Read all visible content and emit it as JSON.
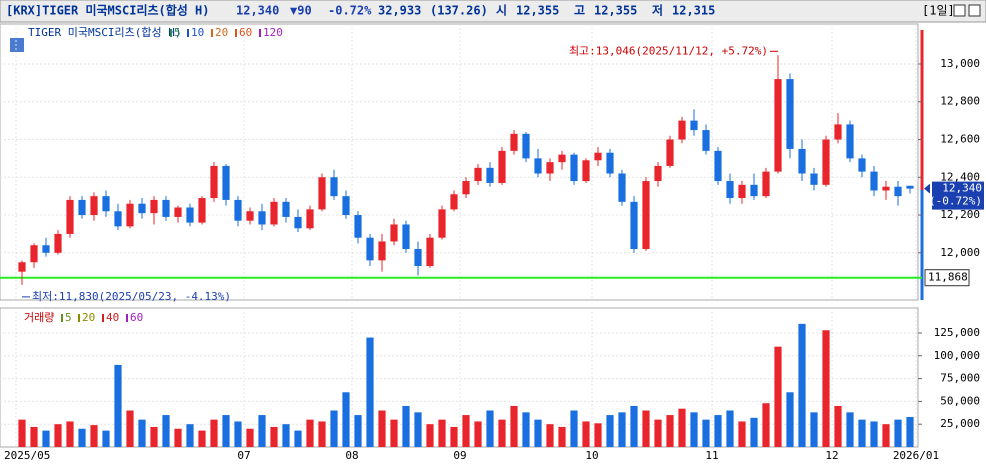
{
  "chart_data": {
    "type": "candlestick",
    "header": {
      "name": "[KRX]TIGER 미국MSCI리츠(합성 H)",
      "price": "12,340",
      "change": "▼90",
      "change_pct": "-0.72%",
      "volume": "32,933",
      "volume_pct": "(137.26)",
      "open_label": "시",
      "open": "12,355",
      "high_label": "고",
      "high": "12,355",
      "low_label": "저",
      "low": "12,315",
      "period": "[1일]"
    },
    "legend": {
      "name": "TIGER 미국MSCI리츠(합성 H)",
      "ma": [
        {
          "name": "5",
          "color": "#2e8b57"
        },
        {
          "name": "10",
          "color": "#1e50c8"
        },
        {
          "name": "20",
          "color": "#d2691e"
        },
        {
          "name": "60",
          "color": "#e0501e"
        },
        {
          "name": "120",
          "color": "#a020c0"
        }
      ]
    },
    "volume_legend": {
      "name": "거래량",
      "ma": [
        {
          "name": "5",
          "color": "#6b8e23"
        },
        {
          "name": "20",
          "color": "#8b8b00"
        },
        {
          "name": "40",
          "color": "#d02020"
        },
        {
          "name": "60",
          "color": "#a020c0"
        }
      ]
    },
    "annotations": {
      "high": "최고:13,046(2025/11/12, +5.72%)",
      "low": "최저:11,830(2025/05/23, -4.13%)",
      "last_price": "12,340",
      "last_pct": "(-0.72%)",
      "ref_label": "11,868"
    },
    "ref_line": 11868,
    "up_color": "#e8242c",
    "down_color": "#1a6fe0",
    "ohlc": [
      [
        11900,
        11960,
        11830,
        11950
      ],
      [
        11950,
        12050,
        11920,
        12040
      ],
      [
        12040,
        12080,
        11980,
        12000
      ],
      [
        12000,
        12120,
        11990,
        12100
      ],
      [
        12100,
        12300,
        12080,
        12280
      ],
      [
        12280,
        12300,
        12180,
        12200
      ],
      [
        12200,
        12320,
        12170,
        12300
      ],
      [
        12300,
        12330,
        12190,
        12220
      ],
      [
        12220,
        12260,
        12120,
        12140
      ],
      [
        12140,
        12280,
        12130,
        12260
      ],
      [
        12260,
        12290,
        12180,
        12210
      ],
      [
        12210,
        12300,
        12150,
        12280
      ],
      [
        12280,
        12300,
        12170,
        12190
      ],
      [
        12190,
        12250,
        12160,
        12240
      ],
      [
        12240,
        12260,
        12140,
        12160
      ],
      [
        12160,
        12300,
        12150,
        12290
      ],
      [
        12290,
        12480,
        12270,
        12460
      ],
      [
        12460,
        12470,
        12250,
        12280
      ],
      [
        12280,
        12300,
        12140,
        12170
      ],
      [
        12170,
        12240,
        12150,
        12220
      ],
      [
        12220,
        12260,
        12120,
        12150
      ],
      [
        12150,
        12290,
        12140,
        12270
      ],
      [
        12270,
        12290,
        12160,
        12190
      ],
      [
        12190,
        12230,
        12110,
        12130
      ],
      [
        12130,
        12250,
        12120,
        12230
      ],
      [
        12230,
        12420,
        12220,
        12400
      ],
      [
        12400,
        12440,
        12280,
        12300
      ],
      [
        12300,
        12330,
        12180,
        12200
      ],
      [
        12200,
        12220,
        12050,
        12080
      ],
      [
        12080,
        12100,
        11930,
        11960
      ],
      [
        11960,
        12100,
        11900,
        12060
      ],
      [
        12060,
        12180,
        12040,
        12150
      ],
      [
        12150,
        12170,
        12000,
        12020
      ],
      [
        12020,
        12060,
        11880,
        11930
      ],
      [
        11930,
        12100,
        11920,
        12080
      ],
      [
        12080,
        12250,
        12070,
        12230
      ],
      [
        12230,
        12330,
        12220,
        12310
      ],
      [
        12310,
        12400,
        12290,
        12380
      ],
      [
        12380,
        12470,
        12360,
        12450
      ],
      [
        12450,
        12480,
        12350,
        12370
      ],
      [
        12370,
        12560,
        12360,
        12540
      ],
      [
        12540,
        12650,
        12520,
        12630
      ],
      [
        12630,
        12640,
        12480,
        12500
      ],
      [
        12500,
        12550,
        12400,
        12420
      ],
      [
        12420,
        12500,
        12380,
        12480
      ],
      [
        12480,
        12540,
        12440,
        12520
      ],
      [
        12520,
        12530,
        12360,
        12380
      ],
      [
        12380,
        12500,
        12370,
        12490
      ],
      [
        12490,
        12560,
        12460,
        12530
      ],
      [
        12530,
        12550,
        12400,
        12420
      ],
      [
        12420,
        12440,
        12250,
        12270
      ],
      [
        12270,
        12300,
        12000,
        12020
      ],
      [
        12020,
        12400,
        12010,
        12380
      ],
      [
        12380,
        12480,
        12350,
        12460
      ],
      [
        12460,
        12620,
        12450,
        12600
      ],
      [
        12600,
        12720,
        12580,
        12700
      ],
      [
        12700,
        12760,
        12620,
        12650
      ],
      [
        12650,
        12680,
        12520,
        12540
      ],
      [
        12540,
        12560,
        12360,
        12380
      ],
      [
        12380,
        12420,
        12260,
        12290
      ],
      [
        12290,
        12380,
        12260,
        12360
      ],
      [
        12360,
        12420,
        12280,
        12300
      ],
      [
        12300,
        12450,
        12290,
        12430
      ],
      [
        12430,
        13046,
        12420,
        12920
      ],
      [
        12920,
        12950,
        12500,
        12550
      ],
      [
        12550,
        12600,
        12380,
        12420
      ],
      [
        12420,
        12450,
        12330,
        12360
      ],
      [
        12360,
        12620,
        12350,
        12600
      ],
      [
        12600,
        12740,
        12580,
        12680
      ],
      [
        12680,
        12700,
        12480,
        12500
      ],
      [
        12500,
        12520,
        12400,
        12430
      ],
      [
        12430,
        12460,
        12300,
        12330
      ],
      [
        12330,
        12380,
        12280,
        12350
      ],
      [
        12350,
        12380,
        12250,
        12300
      ],
      [
        12355,
        12355,
        12315,
        12340
      ]
    ],
    "volume": [
      30000,
      22000,
      18000,
      25000,
      28000,
      20000,
      24000,
      18000,
      90000,
      40000,
      30000,
      22000,
      35000,
      20000,
      25000,
      18000,
      30000,
      35000,
      28000,
      20000,
      35000,
      22000,
      25000,
      18000,
      30000,
      28000,
      40000,
      60000,
      35000,
      120000,
      40000,
      30000,
      45000,
      38000,
      25000,
      30000,
      22000,
      35000,
      28000,
      40000,
      30000,
      45000,
      38000,
      30000,
      25000,
      22000,
      40000,
      28000,
      26000,
      35000,
      38000,
      45000,
      40000,
      30000,
      35000,
      42000,
      38000,
      30000,
      35000,
      40000,
      28000,
      32000,
      48000,
      110000,
      60000,
      135000,
      38000,
      128000,
      45000,
      38000,
      30000,
      28000,
      25000,
      30000,
      32933
    ],
    "xticks": [
      {
        "value": 0,
        "label": "2025/05"
      },
      {
        "value": 19,
        "label": "07"
      },
      {
        "value": 28,
        "label": "08"
      },
      {
        "value": 37,
        "label": "09"
      },
      {
        "value": 48,
        "label": "10"
      },
      {
        "value": 58,
        "label": "11"
      },
      {
        "value": 68,
        "label": "12"
      },
      {
        "value": 75,
        "label": "2026/01"
      }
    ],
    "xlim": [
      0,
      75
    ],
    "ylim": [
      11750,
      13180
    ],
    "yticks": [
      {
        "value": 12000,
        "label": "12,000"
      },
      {
        "value": 12200,
        "label": "12,200"
      },
      {
        "value": 12400,
        "label": "12,400"
      },
      {
        "value": 12600,
        "label": "12,600"
      },
      {
        "value": 12800,
        "label": "12,800"
      },
      {
        "value": 13000,
        "label": "13,000"
      }
    ],
    "y2lim": [
      0,
      148000
    ],
    "y2ticks": [
      {
        "value": 25000,
        "label": "25,000"
      },
      {
        "value": 50000,
        "label": "50,000"
      },
      {
        "value": 75000,
        "label": "75,000"
      },
      {
        "value": 100000,
        "label": "100,000"
      },
      {
        "value": 125000,
        "label": "125,000"
      }
    ],
    "grid": true
  }
}
